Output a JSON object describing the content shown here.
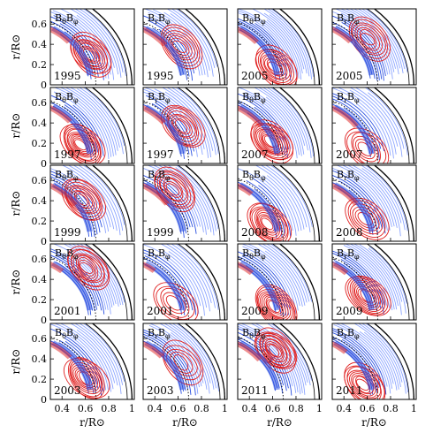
{
  "figure": {
    "y_axis_label": "r/R⊙",
    "x_axis_label": "r/R⊙",
    "x_tick_labels": [
      "0.4",
      "0.6",
      "0.8",
      "1"
    ],
    "y_tick_labels": [
      "0",
      "0.2",
      "0.4",
      "0.6"
    ],
    "columns": [
      {
        "component": "BθBφ"
      },
      {
        "component": "BrBφ"
      },
      {
        "component": "BθBφ"
      },
      {
        "component": "BrBφ"
      }
    ],
    "colors": {
      "positive": "#e02020",
      "negative": "#2a4fe0",
      "light_negative": "#8ea6ff",
      "axis": "#000000"
    }
  },
  "chart_data": {
    "type": "contour",
    "xlim": [
      0.3,
      1.02
    ],
    "ylim": [
      0,
      0.75
    ],
    "xlabel": "r/R⊙",
    "ylabel": "r/R⊙",
    "panels": [
      {
        "row": 1,
        "col": 1,
        "label": "BθBφ",
        "year": "1995"
      },
      {
        "row": 1,
        "col": 2,
        "label": "BrBφ",
        "year": "1995"
      },
      {
        "row": 1,
        "col": 3,
        "label": "BθBφ",
        "year": "2005"
      },
      {
        "row": 1,
        "col": 4,
        "label": "BrBφ",
        "year": "2005"
      },
      {
        "row": 2,
        "col": 1,
        "label": "BθBφ",
        "year": "1997"
      },
      {
        "row": 2,
        "col": 2,
        "label": "BrBφ",
        "year": "1997"
      },
      {
        "row": 2,
        "col": 3,
        "label": "BθBφ",
        "year": "2007"
      },
      {
        "row": 2,
        "col": 4,
        "label": "BrBφ",
        "year": "2007"
      },
      {
        "row": 3,
        "col": 1,
        "label": "BθBφ",
        "year": "1999"
      },
      {
        "row": 3,
        "col": 2,
        "label": "BrBφ",
        "year": "1999"
      },
      {
        "row": 3,
        "col": 3,
        "label": "BθBφ",
        "year": "2008"
      },
      {
        "row": 3,
        "col": 4,
        "label": "BrBφ",
        "year": "2008"
      },
      {
        "row": 4,
        "col": 1,
        "label": "BθBφ",
        "year": "2001"
      },
      {
        "row": 4,
        "col": 2,
        "label": "BrBφ",
        "year": "2001"
      },
      {
        "row": 4,
        "col": 3,
        "label": "BθBφ",
        "year": "2009"
      },
      {
        "row": 4,
        "col": 4,
        "label": "BrBφ",
        "year": "2009"
      },
      {
        "row": 5,
        "col": 1,
        "label": "BθBφ",
        "year": "2003"
      },
      {
        "row": 5,
        "col": 2,
        "label": "BrBφ",
        "year": "2003"
      },
      {
        "row": 5,
        "col": 3,
        "label": "BθBφ",
        "year": "2011"
      },
      {
        "row": 5,
        "col": 4,
        "label": "BrBφ",
        "year": "2011"
      }
    ]
  }
}
